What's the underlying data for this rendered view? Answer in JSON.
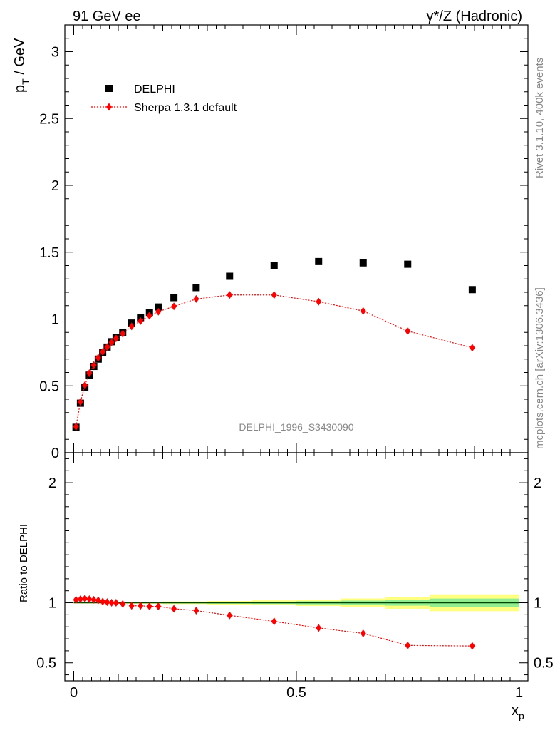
{
  "header": {
    "left_label": "91 GeV ee",
    "right_label": "γ*/Z (Hadronic)"
  },
  "side_labels": {
    "rivet": "Rivet 3.1.10,  400k events",
    "mcplots": "mcplots.cern.ch [arXiv:1306.3436]"
  },
  "watermark": "DELPHI_1996_S3430090",
  "colors": {
    "data": "#000000",
    "mc": "#ff0000",
    "band_inner": "#90ee90",
    "band_outer": "#ffff80",
    "ratio_line": "#004400"
  },
  "chart_data": [
    {
      "type": "scatter",
      "title": "",
      "xlabel": "x",
      "xlabel_sub": "p",
      "ylabel": "p",
      "ylabel_sub": "T",
      "ylabel_unit": " / GeV",
      "xlim": [
        -0.02,
        1.02
      ],
      "ylim": [
        0,
        3.2
      ],
      "y_ticks": [
        0,
        0.5,
        1,
        1.5,
        2,
        2.5,
        3
      ],
      "y_tick_labels": [
        "0",
        "0.5",
        "1",
        "1.5",
        "2",
        "2.5",
        "3"
      ],
      "legend": {
        "position": "top-left",
        "entries": [
          "DELPHI",
          "Sherpa 1.3.1 default"
        ]
      },
      "series": [
        {
          "name": "DELPHI",
          "marker": "square",
          "x": [
            0.005,
            0.015,
            0.025,
            0.035,
            0.045,
            0.055,
            0.065,
            0.075,
            0.085,
            0.095,
            0.11,
            0.13,
            0.15,
            0.17,
            0.19,
            0.225,
            0.275,
            0.35,
            0.45,
            0.55,
            0.65,
            0.75,
            0.895
          ],
          "y": [
            0.19,
            0.37,
            0.49,
            0.58,
            0.645,
            0.7,
            0.75,
            0.79,
            0.83,
            0.86,
            0.9,
            0.97,
            1.01,
            1.05,
            1.09,
            1.16,
            1.235,
            1.32,
            1.4,
            1.43,
            1.42,
            1.41,
            1.22
          ]
        },
        {
          "name": "Sherpa 1.3.1 default",
          "marker": "diamond",
          "x": [
            0.005,
            0.015,
            0.025,
            0.035,
            0.045,
            0.055,
            0.065,
            0.075,
            0.085,
            0.095,
            0.11,
            0.13,
            0.15,
            0.17,
            0.19,
            0.225,
            0.275,
            0.35,
            0.45,
            0.55,
            0.65,
            0.75,
            0.895
          ],
          "y": [
            0.195,
            0.38,
            0.505,
            0.595,
            0.655,
            0.71,
            0.755,
            0.79,
            0.825,
            0.855,
            0.89,
            0.945,
            0.985,
            1.025,
            1.055,
            1.095,
            1.15,
            1.18,
            1.18,
            1.13,
            1.06,
            0.91,
            0.785
          ]
        }
      ]
    },
    {
      "type": "scatter",
      "title": "",
      "xlabel": "x",
      "xlabel_sub": "p",
      "ylabel": "Ratio to DELPHI",
      "xlim": [
        -0.02,
        1.02
      ],
      "ylim": [
        0.35,
        2.25
      ],
      "x_ticks": [
        0,
        0.5,
        1
      ],
      "x_tick_labels": [
        "0",
        "0.5",
        "1"
      ],
      "y_ticks": [
        0.5,
        1,
        2
      ],
      "y_tick_labels": [
        "0.5",
        "1",
        "2"
      ],
      "reference_line": 1,
      "uncertainty_band": {
        "x_edges": [
          0,
          0.1,
          0.2,
          0.3,
          0.4,
          0.5,
          0.6,
          0.7,
          0.8,
          1.0
        ],
        "inner": [
          0.003,
          0.004,
          0.006,
          0.008,
          0.01,
          0.013,
          0.018,
          0.024,
          0.035
        ],
        "outer": [
          0.006,
          0.008,
          0.011,
          0.015,
          0.02,
          0.027,
          0.036,
          0.05,
          0.07
        ]
      },
      "series": [
        {
          "name": "Sherpa 1.3.1 default / DELPHI",
          "marker": "diamond",
          "x": [
            0.005,
            0.015,
            0.025,
            0.035,
            0.045,
            0.055,
            0.065,
            0.075,
            0.085,
            0.095,
            0.11,
            0.13,
            0.15,
            0.17,
            0.19,
            0.225,
            0.275,
            0.35,
            0.45,
            0.55,
            0.65,
            0.75,
            0.895
          ],
          "y": [
            1.025,
            1.03,
            1.035,
            1.03,
            1.025,
            1.02,
            1.01,
            1.005,
            1.0,
            1.0,
            0.99,
            0.975,
            0.975,
            0.97,
            0.97,
            0.95,
            0.935,
            0.895,
            0.845,
            0.79,
            0.745,
            0.645,
            0.64
          ]
        }
      ]
    }
  ]
}
